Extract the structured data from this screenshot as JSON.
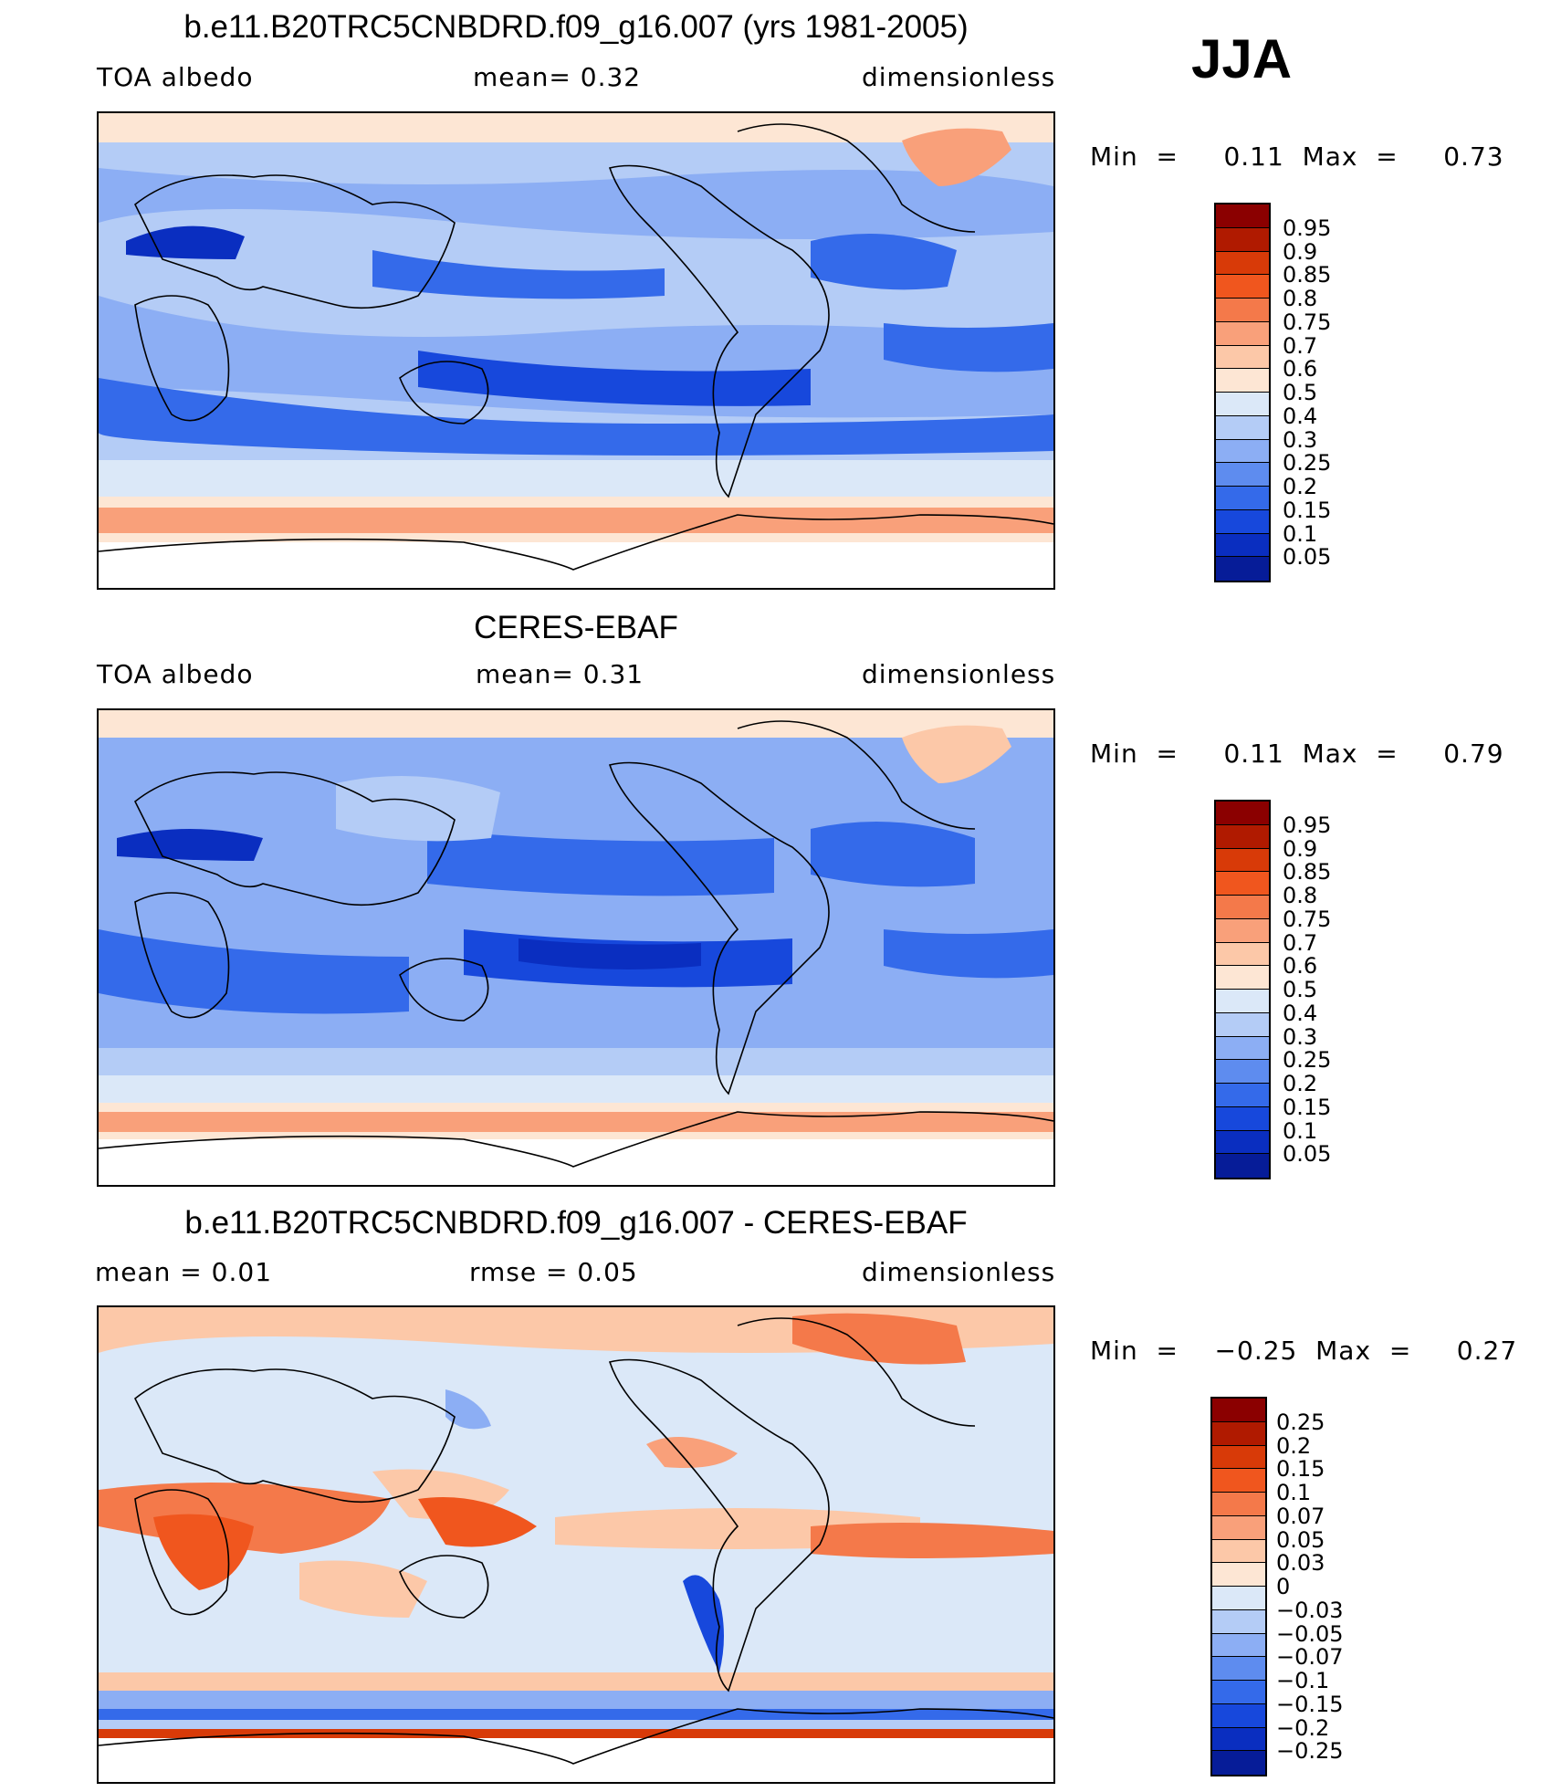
{
  "season": "JJA",
  "panels": [
    {
      "title": "b.e11.B20TRC5CNBDRD.f09_g16.007 (yrs 1981-2005)",
      "left_label": "TOA  albedo",
      "center_label": "mean=    0.32",
      "right_label": "dimensionless",
      "minmax": "Min  =     0.11  Max  =     0.73",
      "colorbar": {
        "colors": [
          "#8b0000",
          "#b01a00",
          "#d83a08",
          "#f0561e",
          "#f4794a",
          "#f9a07a",
          "#fcc8a8",
          "#fde6d4",
          "#dbe8f8",
          "#b4ccf6",
          "#8caef4",
          "#5e8cef",
          "#346aea",
          "#1748dc",
          "#0a2ec0",
          "#061c98"
        ],
        "labels": [
          "0.95",
          "0.9",
          "0.85",
          "0.8",
          "0.75",
          "0.7",
          "0.6",
          "0.5",
          "0.4",
          "0.3",
          "0.25",
          "0.2",
          "0.15",
          "0.1",
          "0.05"
        ]
      }
    },
    {
      "title": "CERES-EBAF",
      "left_label": "TOA  albedo",
      "center_label": "mean=    0.31",
      "right_label": "dimensionless",
      "minmax": "Min  =     0.11  Max  =     0.79",
      "colorbar": {
        "colors": [
          "#8b0000",
          "#b01a00",
          "#d83a08",
          "#f0561e",
          "#f4794a",
          "#f9a07a",
          "#fcc8a8",
          "#fde6d4",
          "#dbe8f8",
          "#b4ccf6",
          "#8caef4",
          "#5e8cef",
          "#346aea",
          "#1748dc",
          "#0a2ec0",
          "#061c98"
        ],
        "labels": [
          "0.95",
          "0.9",
          "0.85",
          "0.8",
          "0.75",
          "0.7",
          "0.6",
          "0.5",
          "0.4",
          "0.3",
          "0.25",
          "0.2",
          "0.15",
          "0.1",
          "0.05"
        ]
      }
    },
    {
      "title": "b.e11.B20TRC5CNBDRD.f09_g16.007 - CERES-EBAF",
      "left_label": "mean  =     0.01",
      "center_label": "rmse  =     0.05",
      "right_label": "dimensionless",
      "minmax": "Min  =    −0.25  Max  =     0.27",
      "colorbar": {
        "colors": [
          "#8b0000",
          "#b01a00",
          "#d83a08",
          "#f0561e",
          "#f4794a",
          "#f9a07a",
          "#fcc8a8",
          "#fde6d4",
          "#dbe8f8",
          "#b4ccf6",
          "#8caef4",
          "#5e8cef",
          "#346aea",
          "#1748dc",
          "#0a2ec0",
          "#061c98"
        ],
        "labels": [
          "0.25",
          "0.2",
          "0.15",
          "0.1",
          "0.07",
          "0.05",
          "0.03",
          "0",
          "−0.03",
          "−0.05",
          "−0.07",
          "−0.1",
          "−0.15",
          "−0.2",
          "−0.25"
        ]
      }
    }
  ]
}
